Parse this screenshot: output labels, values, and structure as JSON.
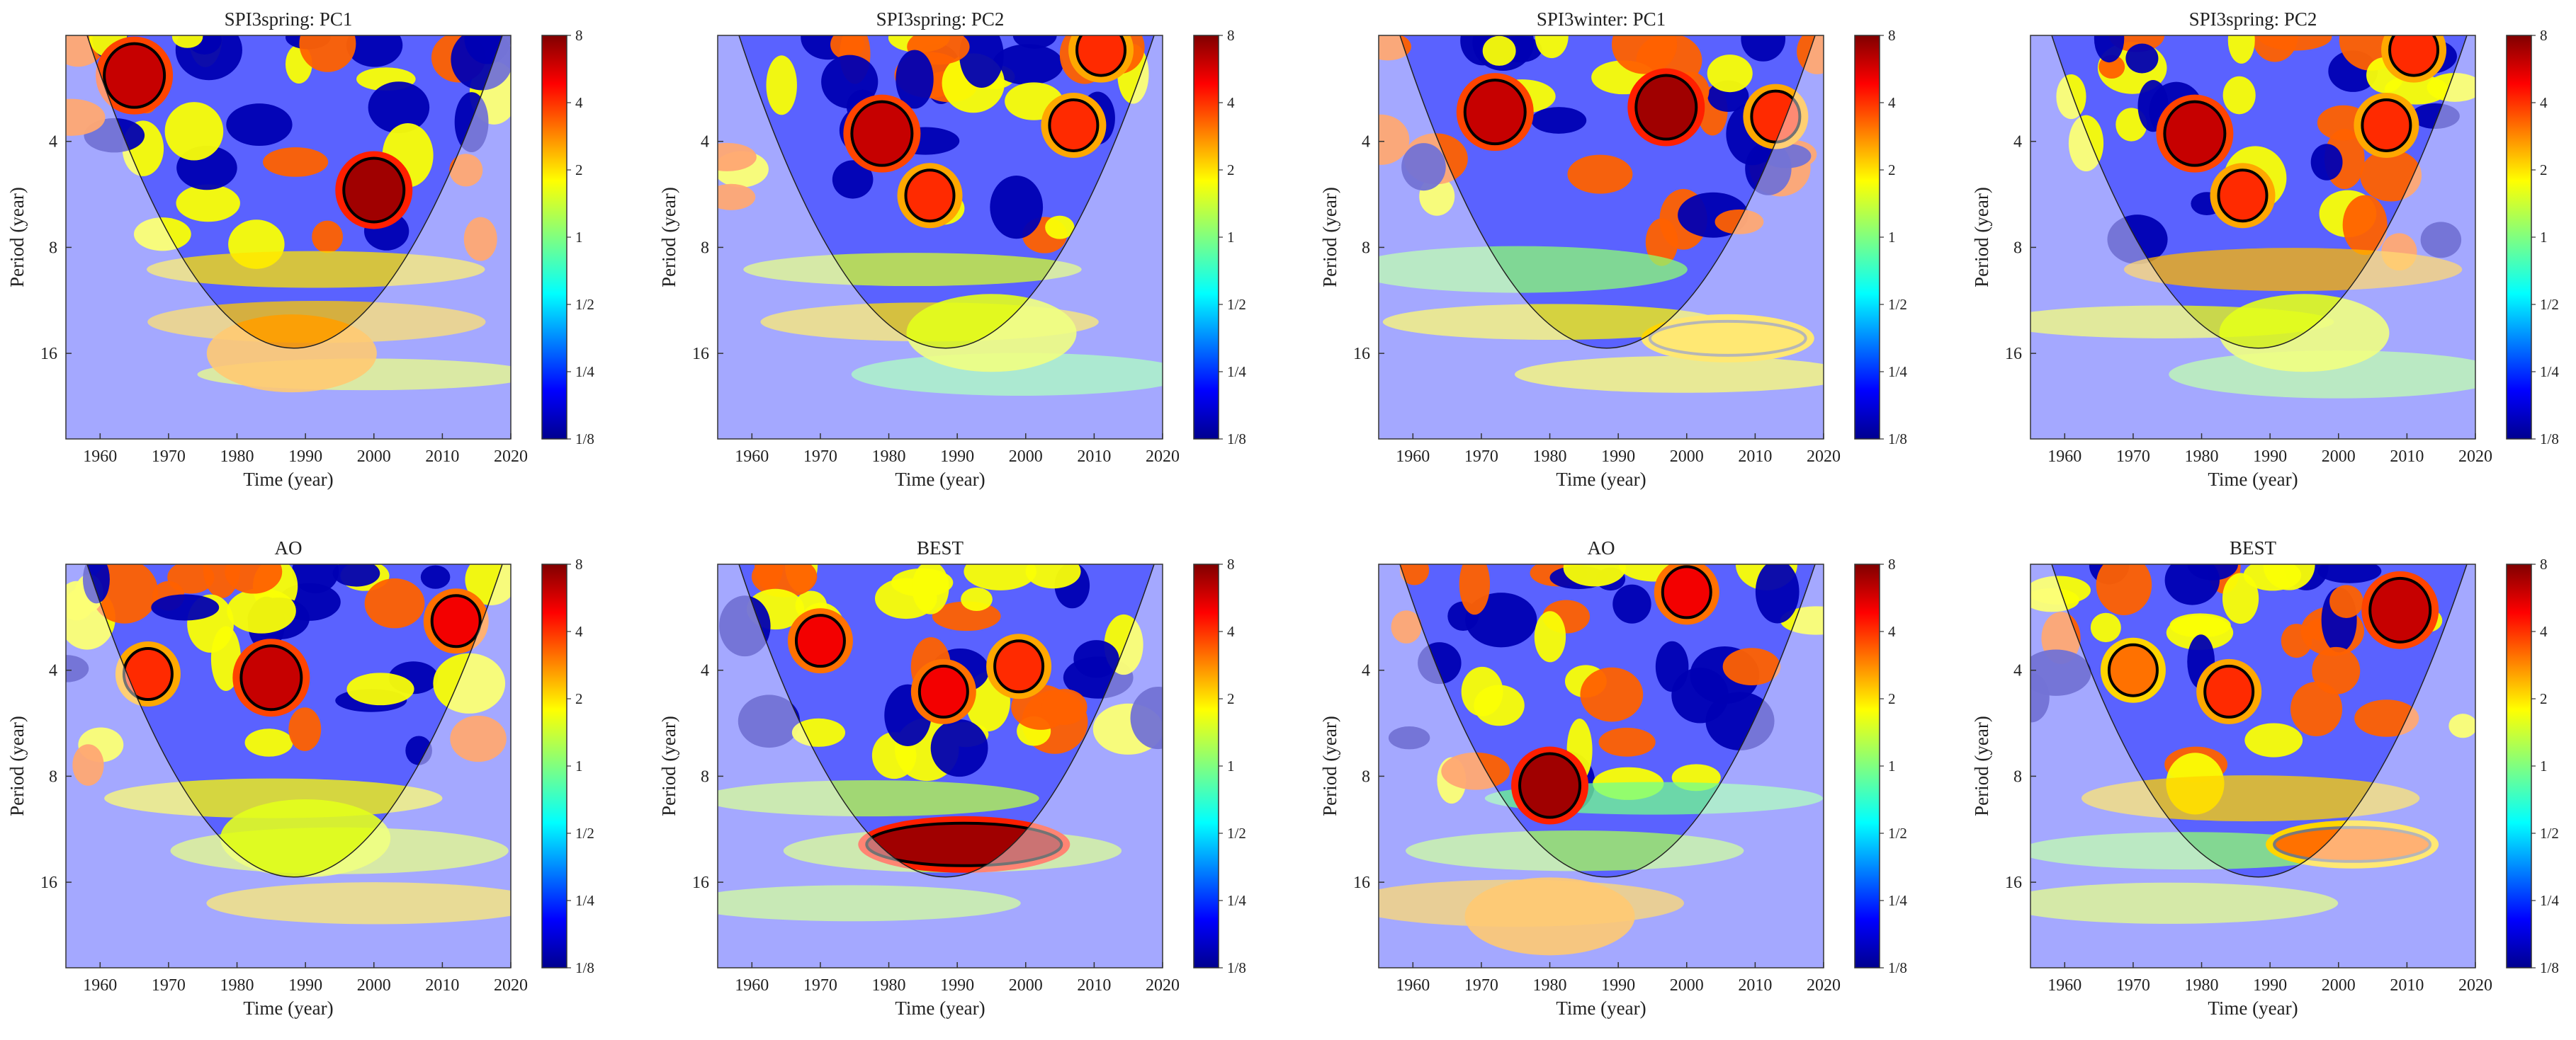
{
  "figure": {
    "xlabel": "Time (year)",
    "ylabel": "Period (year)",
    "x_ticks": [
      "1960",
      "1970",
      "1980",
      "1990",
      "2000",
      "2010",
      "2020"
    ],
    "y_ticks": [
      "4",
      "8",
      "16"
    ],
    "colorbar_ticks": [
      "8",
      "4",
      "2",
      "1",
      "1/2",
      "1/4",
      "1/8"
    ]
  },
  "chart_data": [
    {
      "type": "heatmap",
      "title": "SPI3spring: PC1",
      "xlim": [
        1955,
        2020
      ],
      "ylim_period": [
        2,
        28
      ],
      "y_scale": "log2",
      "x_values": [
        1960,
        1970,
        1980,
        1990,
        2000,
        2010,
        2020
      ],
      "y_values": [
        4,
        8,
        16
      ],
      "colorbar_range": [
        "1/8",
        "8"
      ],
      "significant_regions": [
        {
          "x": 1965,
          "period": 2.6,
          "power": 6,
          "outline": "black"
        },
        {
          "x": 2000,
          "period": 5.5,
          "power": 7,
          "outline": "black"
        }
      ],
      "high_power": [
        {
          "x": 1988,
          "period": 16,
          "power": 2.5
        }
      ]
    },
    {
      "type": "heatmap",
      "title": "SPI3spring: PC2",
      "xlim": [
        1955,
        2020
      ],
      "ylim_period": [
        2,
        28
      ],
      "y_scale": "log2",
      "x_values": [
        1960,
        1970,
        1980,
        1990,
        2000,
        2010,
        2020
      ],
      "y_values": [
        4,
        8,
        16
      ],
      "colorbar_range": [
        "1/8",
        "8"
      ],
      "significant_regions": [
        {
          "x": 1979,
          "period": 3.8,
          "power": 6,
          "outline": "black"
        },
        {
          "x": 1986,
          "period": 5.7,
          "power": 4,
          "outline": "black"
        },
        {
          "x": 2007,
          "period": 3.6,
          "power": 4,
          "outline": "black"
        },
        {
          "x": 2011,
          "period": 2.2,
          "power": 4,
          "outline": "black"
        }
      ],
      "high_power": [
        {
          "x": 1995,
          "period": 14,
          "power": 1.5
        }
      ]
    },
    {
      "type": "heatmap",
      "title": "SPI3winter: PC1",
      "xlim": [
        1955,
        2020
      ],
      "ylim_period": [
        2,
        28
      ],
      "y_scale": "log2",
      "x_values": [
        1960,
        1970,
        1980,
        1990,
        2000,
        2010,
        2020
      ],
      "y_values": [
        4,
        8,
        16
      ],
      "colorbar_range": [
        "1/8",
        "8"
      ],
      "significant_regions": [
        {
          "x": 1972,
          "period": 3.3,
          "power": 6,
          "outline": "black"
        },
        {
          "x": 1997,
          "period": 3.2,
          "power": 7,
          "outline": "black"
        },
        {
          "x": 2013,
          "period": 3.4,
          "power": 4,
          "outline": "black"
        },
        {
          "x": 2006,
          "period": 14.5,
          "power": 2,
          "outline": "gray"
        }
      ],
      "high_power": []
    },
    {
      "type": "heatmap",
      "title": "SPI3spring: PC2",
      "xlim": [
        1955,
        2020
      ],
      "ylim_period": [
        2,
        28
      ],
      "y_scale": "log2",
      "x_values": [
        1960,
        1970,
        1980,
        1990,
        2000,
        2010,
        2020
      ],
      "y_values": [
        4,
        8,
        16
      ],
      "colorbar_range": [
        "1/8",
        "8"
      ],
      "significant_regions": [
        {
          "x": 1979,
          "period": 3.8,
          "power": 6,
          "outline": "black"
        },
        {
          "x": 1986,
          "period": 5.7,
          "power": 4,
          "outline": "black"
        },
        {
          "x": 2007,
          "period": 3.6,
          "power": 4,
          "outline": "black"
        },
        {
          "x": 2011,
          "period": 2.2,
          "power": 4,
          "outline": "black"
        }
      ],
      "high_power": [
        {
          "x": 1995,
          "period": 14,
          "power": 1.5
        }
      ]
    },
    {
      "type": "heatmap",
      "title": "AO",
      "xlim": [
        1955,
        2020
      ],
      "ylim_period": [
        2,
        28
      ],
      "y_scale": "log2",
      "x_values": [
        1960,
        1970,
        1980,
        1990,
        2000,
        2010,
        2020
      ],
      "y_values": [
        4,
        8,
        16
      ],
      "colorbar_range": [
        "1/8",
        "8"
      ],
      "significant_regions": [
        {
          "x": 1967,
          "period": 4.1,
          "power": 4,
          "outline": "black"
        },
        {
          "x": 1985,
          "period": 4.2,
          "power": 6,
          "outline": "black"
        },
        {
          "x": 2012,
          "period": 2.9,
          "power": 5,
          "outline": "black"
        }
      ],
      "high_power": [
        {
          "x": 1990,
          "period": 12,
          "power": 1.5
        }
      ]
    },
    {
      "type": "heatmap",
      "title": "BEST",
      "xlim": [
        1955,
        2020
      ],
      "ylim_period": [
        2,
        28
      ],
      "y_scale": "log2",
      "x_values": [
        1960,
        1970,
        1980,
        1990,
        2000,
        2010,
        2020
      ],
      "y_values": [
        4,
        8,
        16
      ],
      "colorbar_range": [
        "1/8",
        "8"
      ],
      "significant_regions": [
        {
          "x": 1970,
          "period": 3.3,
          "power": 5,
          "outline": "black"
        },
        {
          "x": 1988,
          "period": 4.6,
          "power": 5,
          "outline": "black"
        },
        {
          "x": 1999,
          "period": 3.9,
          "power": 4,
          "outline": "black"
        },
        {
          "x": 1991,
          "period": 12.5,
          "power": 7,
          "outline": "black"
        }
      ],
      "high_power": []
    },
    {
      "type": "heatmap",
      "title": "AO",
      "xlim": [
        1955,
        2020
      ],
      "ylim_period": [
        2,
        28
      ],
      "y_scale": "log2",
      "x_values": [
        1960,
        1970,
        1980,
        1990,
        2000,
        2010,
        2020
      ],
      "y_values": [
        4,
        8,
        16
      ],
      "colorbar_range": [
        "1/8",
        "8"
      ],
      "significant_regions": [
        {
          "x": 2000,
          "period": 2.4,
          "power": 5,
          "outline": "black"
        },
        {
          "x": 1980,
          "period": 8.5,
          "power": 7,
          "outline": "black"
        }
      ],
      "high_power": [
        {
          "x": 1980,
          "period": 20,
          "power": 2.5
        }
      ]
    },
    {
      "type": "heatmap",
      "title": "BEST",
      "xlim": [
        1955,
        2020
      ],
      "ylim_period": [
        2,
        28
      ],
      "y_scale": "log2",
      "x_values": [
        1960,
        1970,
        1980,
        1990,
        2000,
        2010,
        2020
      ],
      "y_values": [
        4,
        8,
        16
      ],
      "colorbar_range": [
        "1/8",
        "8"
      ],
      "significant_regions": [
        {
          "x": 2009,
          "period": 2.7,
          "power": 6,
          "outline": "black"
        },
        {
          "x": 1984,
          "period": 4.6,
          "power": 4,
          "outline": "black"
        },
        {
          "x": 1970,
          "period": 4.0,
          "power": 3,
          "outline": "black"
        },
        {
          "x": 2002,
          "period": 12.5,
          "power": 3,
          "outline": "gray"
        }
      ],
      "high_power": []
    }
  ]
}
